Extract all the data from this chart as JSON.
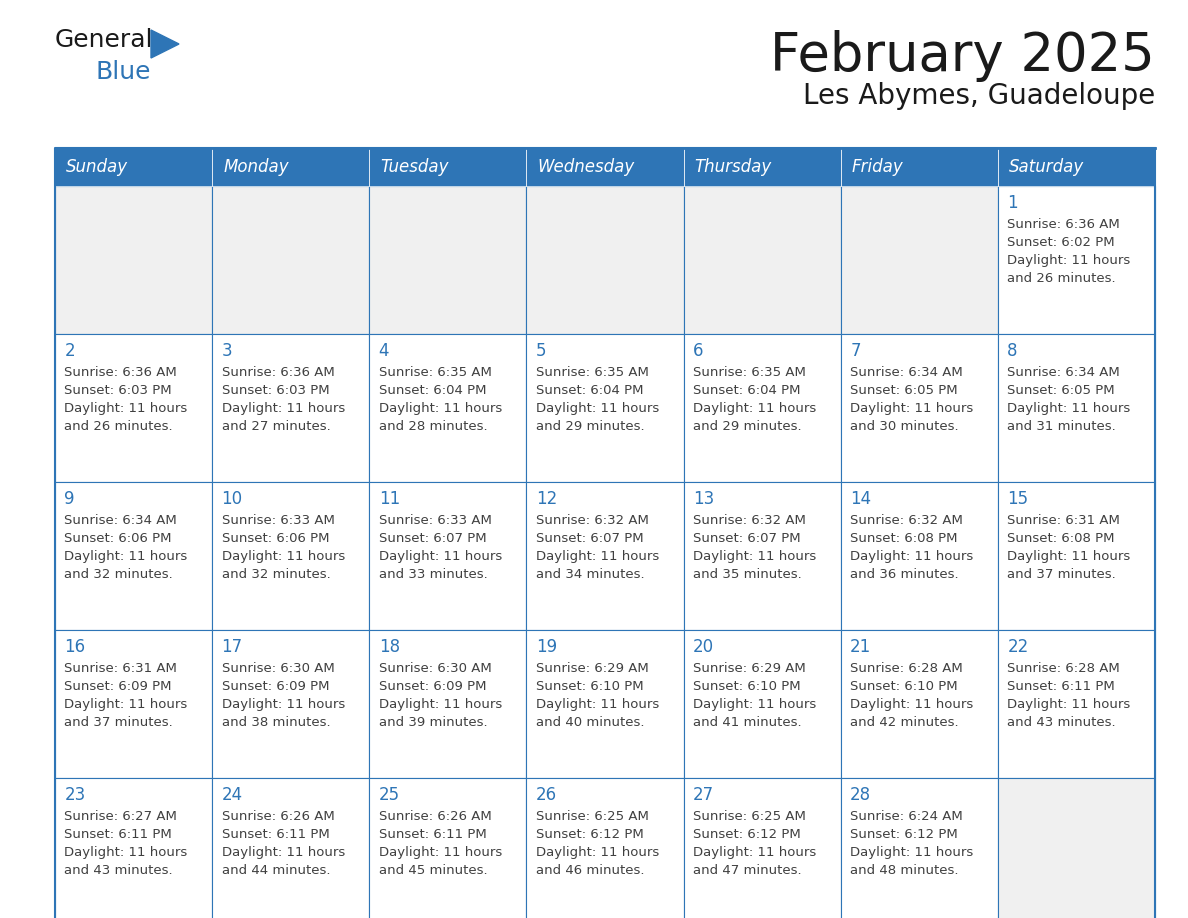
{
  "title": "February 2025",
  "subtitle": "Les Abymes, Guadeloupe",
  "days_of_week": [
    "Sunday",
    "Monday",
    "Tuesday",
    "Wednesday",
    "Thursday",
    "Friday",
    "Saturday"
  ],
  "header_bg": "#2E75B6",
  "header_text": "#FFFFFF",
  "cell_bg": "#FFFFFF",
  "cell_bg_empty": "#F0F0F0",
  "cell_border": "#2E75B6",
  "day_num_color": "#2E75B6",
  "info_color": "#404040",
  "title_color": "#1a1a1a",
  "subtitle_color": "#1a1a1a",
  "logo_general_color": "#1a1a1a",
  "logo_blue_color": "#2E75B6",
  "calendar": [
    [
      null,
      null,
      null,
      null,
      null,
      null,
      1
    ],
    [
      2,
      3,
      4,
      5,
      6,
      7,
      8
    ],
    [
      9,
      10,
      11,
      12,
      13,
      14,
      15
    ],
    [
      16,
      17,
      18,
      19,
      20,
      21,
      22
    ],
    [
      23,
      24,
      25,
      26,
      27,
      28,
      null
    ]
  ],
  "sunrise": {
    "1": "6:36 AM",
    "2": "6:36 AM",
    "3": "6:36 AM",
    "4": "6:35 AM",
    "5": "6:35 AM",
    "6": "6:35 AM",
    "7": "6:34 AM",
    "8": "6:34 AM",
    "9": "6:34 AM",
    "10": "6:33 AM",
    "11": "6:33 AM",
    "12": "6:32 AM",
    "13": "6:32 AM",
    "14": "6:32 AM",
    "15": "6:31 AM",
    "16": "6:31 AM",
    "17": "6:30 AM",
    "18": "6:30 AM",
    "19": "6:29 AM",
    "20": "6:29 AM",
    "21": "6:28 AM",
    "22": "6:28 AM",
    "23": "6:27 AM",
    "24": "6:26 AM",
    "25": "6:26 AM",
    "26": "6:25 AM",
    "27": "6:25 AM",
    "28": "6:24 AM"
  },
  "sunset": {
    "1": "6:02 PM",
    "2": "6:03 PM",
    "3": "6:03 PM",
    "4": "6:04 PM",
    "5": "6:04 PM",
    "6": "6:04 PM",
    "7": "6:05 PM",
    "8": "6:05 PM",
    "9": "6:06 PM",
    "10": "6:06 PM",
    "11": "6:07 PM",
    "12": "6:07 PM",
    "13": "6:07 PM",
    "14": "6:08 PM",
    "15": "6:08 PM",
    "16": "6:09 PM",
    "17": "6:09 PM",
    "18": "6:09 PM",
    "19": "6:10 PM",
    "20": "6:10 PM",
    "21": "6:10 PM",
    "22": "6:11 PM",
    "23": "6:11 PM",
    "24": "6:11 PM",
    "25": "6:11 PM",
    "26": "6:12 PM",
    "27": "6:12 PM",
    "28": "6:12 PM"
  },
  "daylight": {
    "1": "11 hours and 26 minutes.",
    "2": "11 hours and 26 minutes.",
    "3": "11 hours and 27 minutes.",
    "4": "11 hours and 28 minutes.",
    "5": "11 hours and 29 minutes.",
    "6": "11 hours and 29 minutes.",
    "7": "11 hours and 30 minutes.",
    "8": "11 hours and 31 minutes.",
    "9": "11 hours and 32 minutes.",
    "10": "11 hours and 32 minutes.",
    "11": "11 hours and 33 minutes.",
    "12": "11 hours and 34 minutes.",
    "13": "11 hours and 35 minutes.",
    "14": "11 hours and 36 minutes.",
    "15": "11 hours and 37 minutes.",
    "16": "11 hours and 37 minutes.",
    "17": "11 hours and 38 minutes.",
    "18": "11 hours and 39 minutes.",
    "19": "11 hours and 40 minutes.",
    "20": "11 hours and 41 minutes.",
    "21": "11 hours and 42 minutes.",
    "22": "11 hours and 43 minutes.",
    "23": "11 hours and 43 minutes.",
    "24": "11 hours and 44 minutes.",
    "25": "11 hours and 45 minutes.",
    "26": "11 hours and 46 minutes.",
    "27": "11 hours and 47 minutes.",
    "28": "11 hours and 48 minutes."
  }
}
